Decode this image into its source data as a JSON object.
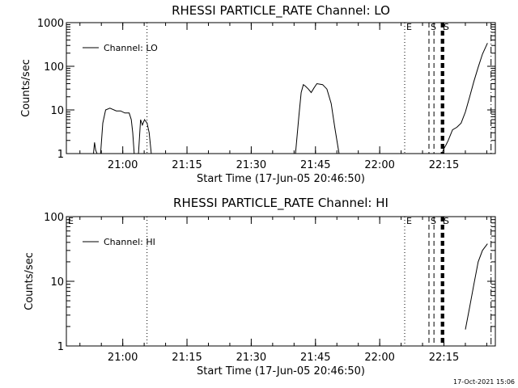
{
  "footer": {
    "timestamp": "17-Oct-2021 15:06"
  },
  "chart_data": [
    {
      "type": "line",
      "title": "RHESSI PARTICLE_RATE Channel: LO",
      "xlabel": "Start Time (17-Jun-05 20:46:50)",
      "ylabel": "Counts/sec",
      "y_scale": "log",
      "ylim": [
        1,
        1000
      ],
      "xlim": [
        "20:46:50",
        "22:27:00"
      ],
      "y_ticks": [
        "1",
        "10",
        "100",
        "1000"
      ],
      "x_ticks": [
        "21:00",
        "21:15",
        "21:30",
        "21:45",
        "22:00",
        "22:15"
      ],
      "legend": {
        "position": "top-left",
        "entries": [
          "Channel: LO"
        ]
      },
      "series": [
        {
          "name": "Channel: LO",
          "segments": [
            [
              [
                "20:53:10",
                1
              ],
              [
                "20:53:25",
                1.8
              ],
              [
                "20:53:40",
                1.2
              ],
              [
                "20:54:00",
                1
              ]
            ],
            [
              [
                "20:54:50",
                1
              ],
              [
                "20:55:20",
                5
              ],
              [
                "20:56:00",
                10
              ],
              [
                "20:57:00",
                11
              ],
              [
                "20:58:30",
                9.5
              ],
              [
                "20:59:30",
                9.5
              ],
              [
                "21:00:30",
                8.5
              ],
              [
                "21:01:30",
                8.5
              ],
              [
                "21:02:00",
                6
              ],
              [
                "21:02:20",
                3
              ],
              [
                "21:02:40",
                1
              ]
            ],
            [
              [
                "21:03:40",
                1
              ],
              [
                "21:04:10",
                6
              ],
              [
                "21:04:35",
                4.5
              ],
              [
                "21:05:05",
                6
              ],
              [
                "21:05:40",
                5
              ],
              [
                "21:06:10",
                3
              ],
              [
                "21:06:40",
                1
              ]
            ],
            [
              [
                "21:40:20",
                1
              ],
              [
                "21:41:10",
                8
              ],
              [
                "21:41:40",
                25
              ],
              [
                "21:42:10",
                38
              ],
              [
                "21:42:40",
                35
              ],
              [
                "21:43:20",
                30
              ],
              [
                "21:44:00",
                25
              ],
              [
                "21:44:40",
                32
              ],
              [
                "21:45:20",
                40
              ],
              [
                "21:46:40",
                38
              ],
              [
                "21:47:40",
                30
              ],
              [
                "21:48:40",
                14
              ],
              [
                "21:49:30",
                4
              ],
              [
                "21:50:30",
                1
              ]
            ],
            [
              [
                "22:14:30",
                1
              ],
              [
                "22:15:00",
                1.3
              ],
              [
                "22:15:30",
                1.6
              ],
              [
                "22:16:00",
                2
              ],
              [
                "22:17:00",
                3.5
              ],
              [
                "22:18:00",
                4
              ],
              [
                "22:19:00",
                5
              ],
              [
                "22:20:00",
                9
              ],
              [
                "22:21:00",
                20
              ],
              [
                "22:22:00",
                45
              ],
              [
                "22:23:00",
                95
              ],
              [
                "22:24:00",
                190
              ],
              [
                "22:25:10",
                340
              ]
            ]
          ]
        }
      ],
      "markers": [
        {
          "label": "E",
          "time": "22:05:50",
          "style": "dotted"
        },
        {
          "label": "S",
          "time": "22:11:30",
          "style": "dashed"
        },
        {
          "label": "",
          "time": "22:12:40",
          "style": "dashed"
        },
        {
          "label": "S",
          "time": "22:14:30",
          "style": "dashed-thick"
        },
        {
          "label": "",
          "time": "22:14:50",
          "style": "dashed-thick"
        },
        {
          "label": "",
          "time": "22:26:00",
          "style": "dash-dot"
        },
        {
          "label": "",
          "time": "21:05:40",
          "style": "dotted"
        }
      ]
    },
    {
      "type": "line",
      "title": "RHESSI PARTICLE_RATE Channel: HI",
      "xlabel": "Start Time (17-Jun-05 20:46:50)",
      "ylabel": "Counts/sec",
      "y_scale": "log",
      "ylim": [
        1,
        100
      ],
      "xlim": [
        "20:46:50",
        "22:27:00"
      ],
      "y_ticks": [
        "1",
        "10",
        "100"
      ],
      "x_ticks": [
        "21:00",
        "21:15",
        "21:30",
        "21:45",
        "22:00",
        "22:15"
      ],
      "legend": {
        "position": "top-left",
        "entries": [
          "Channel: HI"
        ]
      },
      "series": [
        {
          "name": "Channel: HI",
          "segments": [
            [
              [
                "22:20:00",
                1.8
              ],
              [
                "22:21:00",
                4
              ],
              [
                "22:22:00",
                9
              ],
              [
                "22:23:00",
                20
              ],
              [
                "22:24:00",
                30
              ],
              [
                "22:25:10",
                38
              ]
            ]
          ]
        }
      ],
      "markers": [
        {
          "label": "E",
          "time": "22:05:50",
          "style": "dotted"
        },
        {
          "label": "S",
          "time": "22:11:30",
          "style": "dashed"
        },
        {
          "label": "",
          "time": "22:12:40",
          "style": "dashed"
        },
        {
          "label": "S",
          "time": "22:14:30",
          "style": "dashed-thick"
        },
        {
          "label": "",
          "time": "22:14:50",
          "style": "dashed-thick"
        },
        {
          "label": "",
          "time": "22:26:00",
          "style": "dash-dot"
        },
        {
          "label": "E",
          "time": "20:46:50",
          "style": "none"
        },
        {
          "label": "",
          "time": "21:05:40",
          "style": "dotted"
        }
      ]
    }
  ]
}
